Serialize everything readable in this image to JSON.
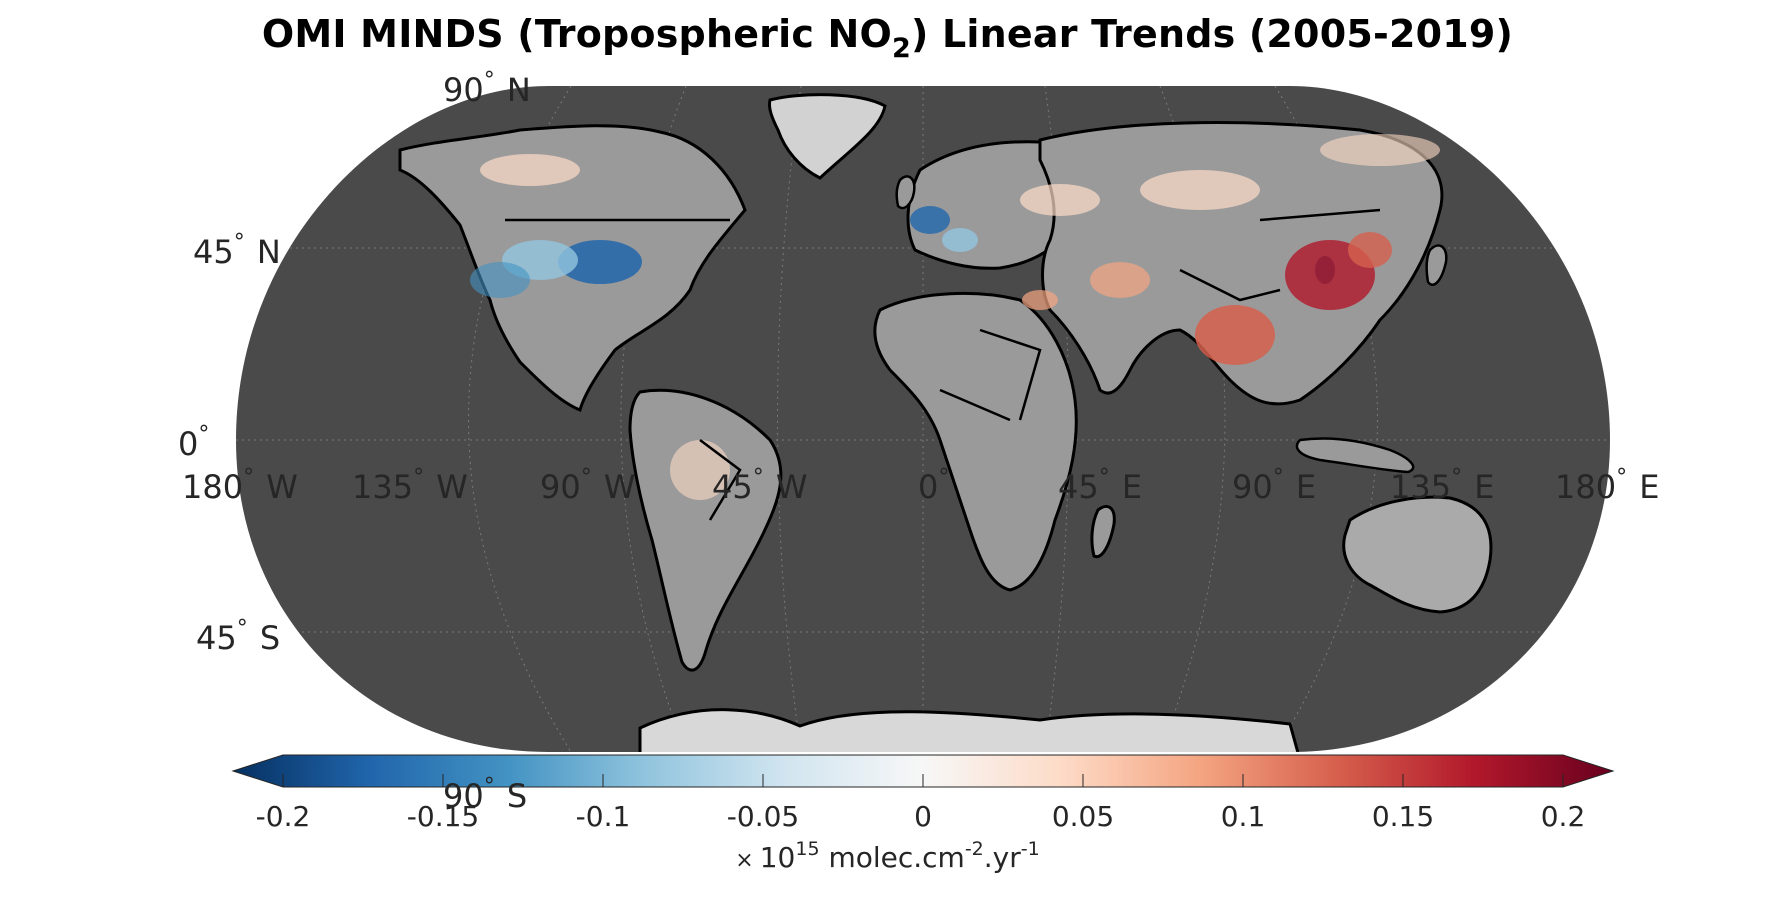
{
  "title": {
    "main": "OMI MINDS (Tropospheric NO",
    "sub": "2",
    "tail": ") Linear Trends (2005-2019)"
  },
  "lat_labels": {
    "n90": {
      "value": "90",
      "deg": "°",
      "hemi": "N"
    },
    "n45": {
      "value": "45",
      "deg": "°",
      "hemi": "N"
    },
    "eq": {
      "value": "0",
      "deg": "°",
      "hemi": ""
    },
    "s45": {
      "value": "45",
      "deg": "°",
      "hemi": "S"
    },
    "s90": {
      "value": "90",
      "deg": "°",
      "hemi": "S"
    }
  },
  "lon_labels": [
    {
      "value": "180",
      "deg": "°",
      "hemi": "W"
    },
    {
      "value": "135",
      "deg": "°",
      "hemi": "W"
    },
    {
      "value": "90",
      "deg": "°",
      "hemi": "W"
    },
    {
      "value": "45",
      "deg": "°",
      "hemi": "W"
    },
    {
      "value": "0",
      "deg": "°",
      "hemi": ""
    },
    {
      "value": "45",
      "deg": "°",
      "hemi": "E"
    },
    {
      "value": "90",
      "deg": "°",
      "hemi": "E"
    },
    {
      "value": "135",
      "deg": "°",
      "hemi": "E"
    },
    {
      "value": "180",
      "deg": "°",
      "hemi": "E"
    }
  ],
  "colorbar": {
    "ticks": [
      "-0.2",
      "-0.15",
      "-0.1",
      "-0.05",
      "0",
      "0.05",
      "0.1",
      "0.15",
      "0.2"
    ],
    "range": [
      -0.2,
      0.2
    ],
    "colormap": [
      "#053061",
      "#2166ac",
      "#4393c3",
      "#92c5de",
      "#d1e5f0",
      "#f7f7f7",
      "#fddbc7",
      "#f4a582",
      "#d6604d",
      "#b2182b",
      "#67001f"
    ],
    "unit_times": "×",
    "unit_base": "10",
    "unit_exp1": "15",
    "unit_text1": " molec.cm",
    "unit_exp2": "-2",
    "unit_text2": ".yr",
    "unit_exp3": "-1"
  },
  "colors": {
    "ocean": "#4a4a4a",
    "land": "#9a9a9a",
    "ice": "#d2d2d2",
    "border": "#000000",
    "decrease": "#2166ac",
    "increase": "#d6604d"
  }
}
